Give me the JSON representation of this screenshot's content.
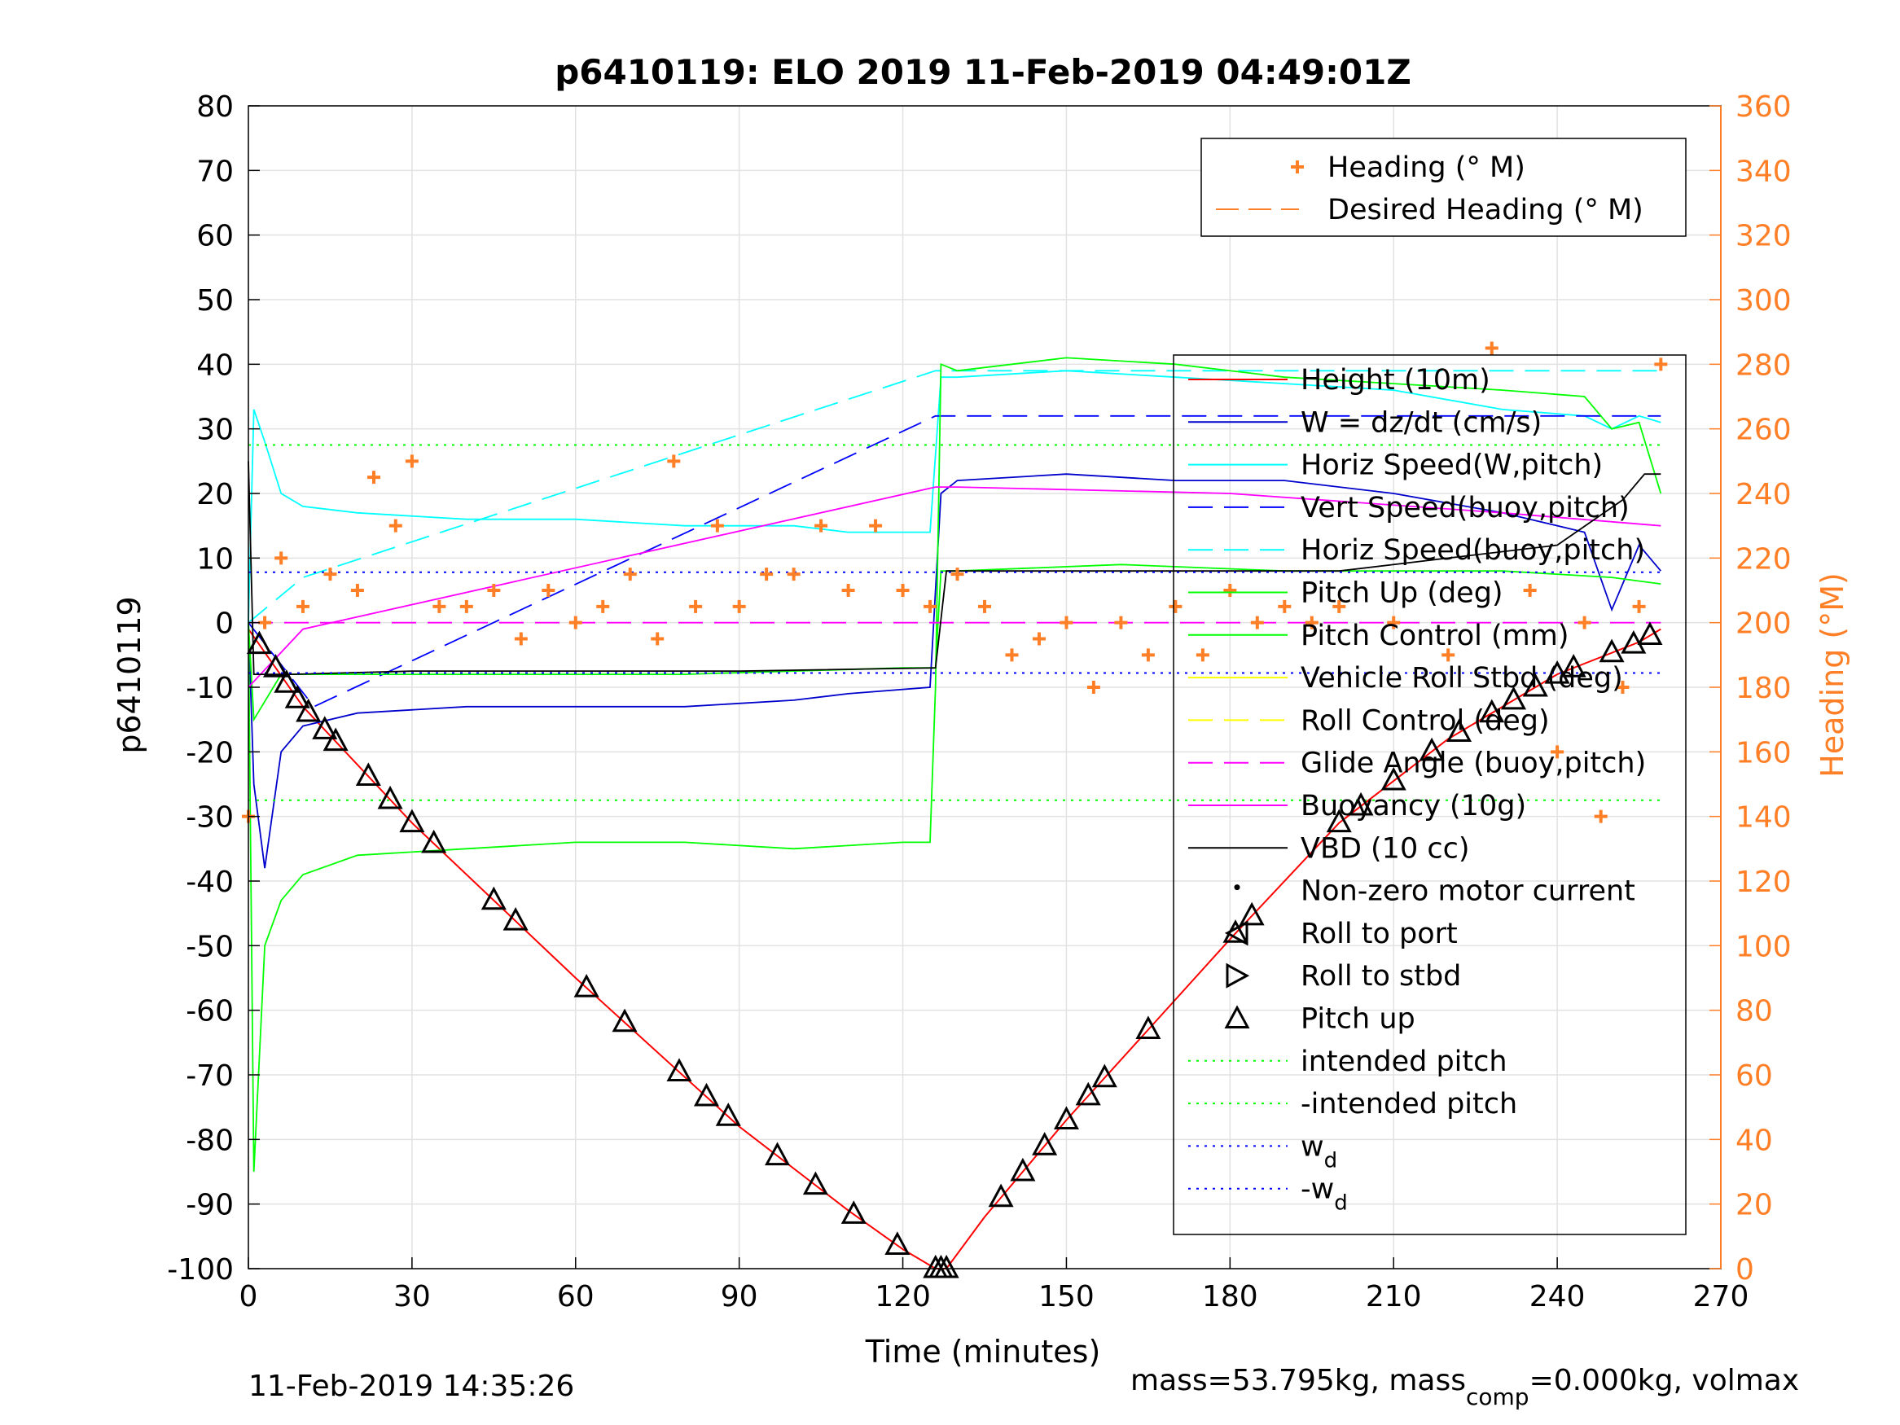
{
  "title": "p6410119: ELO 2019 11-Feb-2019 04:49:01Z",
  "footer_left": "11-Feb-2019 14:35:26",
  "footer_right": {
    "part1": "mass=53.795kg, mass",
    "sub": "comp",
    "part2": "=0.000kg, volmax"
  },
  "colors": {
    "heading": "#ff7f27",
    "height": "#ff0000",
    "w": "#0000cc",
    "horiz_speed": "#00ffff",
    "vert_speed": "#0000ff",
    "pitch": "#00ff00",
    "roll": "#ffff00",
    "glide": "#ff00ff",
    "vbd": "#000000",
    "intended_pitch": "#00ff00",
    "wd": "#0000ff"
  },
  "chart_data": {
    "type": "line",
    "xlabel": "Time (minutes)",
    "ylabel": "p6410119",
    "y2label": "Heading (°M)",
    "xlim": [
      0,
      270
    ],
    "ylim": [
      -100,
      80
    ],
    "y2lim": [
      0,
      360
    ],
    "xticks": [
      0,
      30,
      60,
      90,
      120,
      150,
      180,
      210,
      240,
      270
    ],
    "yticks": [
      80,
      70,
      60,
      50,
      40,
      30,
      20,
      10,
      0,
      -10,
      -20,
      -30,
      -40,
      -50,
      -60,
      -70,
      -80,
      -90,
      -100
    ],
    "y2ticks": [
      360,
      340,
      320,
      300,
      280,
      260,
      240,
      220,
      200,
      180,
      160,
      140,
      120,
      100,
      80,
      60,
      40,
      20,
      0
    ],
    "grid": true,
    "legend_top": {
      "placement": "top-right",
      "entries": [
        "Heading (° M)",
        "Desired Heading (° M)"
      ]
    },
    "legend_main": {
      "placement": "right",
      "entries": [
        {
          "label": "Height (10m)"
        },
        {
          "label": "W = dz/dt (cm/s)"
        },
        {
          "label": "Horiz Speed(W,pitch)"
        },
        {
          "label": "Vert Speed(buoy,pitch)"
        },
        {
          "label": "Horiz Speed(buoy,pitch)"
        },
        {
          "label": "Pitch Up (deg)"
        },
        {
          "label": "Pitch Control (mm)"
        },
        {
          "label": "Vehicle Roll Stbd (deg)"
        },
        {
          "label": "Roll Control (deg)"
        },
        {
          "label": "Glide Angle (buoy,pitch)"
        },
        {
          "label": "Buoyancy (10g)"
        },
        {
          "label": "VBD (10 cc)"
        },
        {
          "label": "Non-zero motor current"
        },
        {
          "label": "Roll to port"
        },
        {
          "label": "Roll to stbd"
        },
        {
          "label": "Pitch up"
        },
        {
          "label": "intended pitch"
        },
        {
          "label": "-intended pitch"
        },
        {
          "label": "w",
          "sub": "d"
        },
        {
          "label": "-w",
          "sub": "d"
        }
      ]
    },
    "series": [
      {
        "name": "Height (10m)",
        "x": [
          0,
          10,
          30,
          60,
          90,
          110,
          120,
          126,
          128,
          135,
          150,
          165,
          180,
          200,
          220,
          240,
          255,
          259
        ],
        "y": [
          -1,
          -13,
          -31,
          -55,
          -78,
          -91,
          -97,
          -100,
          -100,
          -92,
          -77,
          -63,
          -49,
          -31,
          -18,
          -8,
          -3,
          -1
        ]
      },
      {
        "name": "W = dz/dt (cm/s)",
        "x": [
          0,
          1,
          3,
          6,
          10,
          20,
          40,
          60,
          80,
          100,
          110,
          125,
          127,
          130,
          150,
          170,
          190,
          210,
          230,
          245,
          250,
          255,
          259
        ],
        "y": [
          0,
          -25,
          -38,
          -20,
          -16,
          -14,
          -13,
          -13,
          -13,
          -12,
          -11,
          -10,
          20,
          22,
          23,
          22,
          22,
          20,
          17,
          14,
          2,
          12,
          8
        ]
      },
      {
        "name": "Horiz Speed(W,pitch)",
        "x": [
          0,
          1,
          3,
          6,
          10,
          20,
          40,
          60,
          80,
          100,
          110,
          125,
          127,
          130,
          150,
          170,
          190,
          210,
          230,
          245,
          250,
          255,
          259
        ],
        "y": [
          0,
          33,
          28,
          20,
          18,
          17,
          16,
          16,
          15,
          15,
          14,
          14,
          38,
          38,
          39,
          38,
          37,
          36,
          33,
          32,
          30,
          32,
          31
        ]
      },
      {
        "name": "Vert Speed(buoy,pitch)",
        "x": [
          0,
          12,
          126,
          130,
          259
        ],
        "y": [
          0,
          -13,
          32,
          32,
          32
        ]
      },
      {
        "name": "Horiz Speed(buoy,pitch)",
        "x": [
          0,
          10,
          126,
          130,
          259
        ],
        "y": [
          0,
          7,
          39,
          39,
          39
        ]
      },
      {
        "name": "Pitch Control (mm)",
        "x": [
          0,
          1,
          3,
          6,
          10,
          20,
          40,
          60,
          80,
          100,
          120,
          125,
          126,
          127,
          130,
          150,
          170,
          190,
          210,
          230,
          245,
          250,
          255,
          259
        ],
        "y": [
          0,
          -85,
          -50,
          -43,
          -39,
          -36,
          -35,
          -34,
          -34,
          -35,
          -34,
          -34,
          -10,
          40,
          39,
          41,
          40,
          38,
          37,
          36,
          35,
          30,
          31,
          20
        ]
      },
      {
        "name": "Pitch Up (deg)",
        "x": [
          0,
          1,
          6,
          12,
          40,
          80,
          120,
          126,
          127,
          130,
          160,
          190,
          230,
          250,
          259
        ],
        "y": [
          0,
          -15,
          -8,
          -8,
          -8,
          -8,
          -7,
          -7,
          8,
          8,
          9,
          8,
          8,
          7,
          6
        ]
      },
      {
        "name": "Glide Angle (buoy,pitch)",
        "x": [
          0,
          10,
          120,
          126,
          259
        ],
        "y": [
          0,
          0,
          0,
          0,
          0
        ]
      },
      {
        "name": "Buoyancy (10g)",
        "x": [
          0,
          10,
          126,
          130,
          180,
          230,
          259
        ],
        "y": [
          -10,
          -1,
          21,
          21,
          20,
          17,
          15
        ]
      },
      {
        "name": "VBD (10 cc)",
        "x": [
          0,
          1,
          2,
          8,
          30,
          60,
          90,
          126,
          128,
          150,
          200,
          240,
          252,
          256,
          259
        ],
        "y": [
          25,
          -8,
          -8,
          -8,
          -7.5,
          -7.5,
          -7.5,
          -7,
          8,
          8,
          8,
          12,
          19,
          23,
          23
        ]
      },
      {
        "name": "intended pitch",
        "x": [
          0,
          259
        ],
        "y": [
          27.5,
          27.5
        ]
      },
      {
        "name": "-intended pitch",
        "x": [
          0,
          259
        ],
        "y": [
          -27.5,
          -27.5
        ]
      },
      {
        "name": "w",
        "x": [
          0,
          259
        ],
        "y": [
          7.8,
          7.8
        ]
      },
      {
        "name": "-w",
        "x": [
          0,
          259
        ],
        "y": [
          -7.8,
          -7.8
        ]
      }
    ],
    "heading": {
      "name": "Heading (° M)",
      "x": [
        0,
        3,
        6,
        10,
        15,
        20,
        23,
        27,
        30,
        35,
        40,
        45,
        50,
        55,
        60,
        65,
        70,
        75,
        78,
        82,
        86,
        90,
        95,
        100,
        105,
        110,
        115,
        120,
        125,
        130,
        135,
        140,
        145,
        150,
        155,
        160,
        165,
        170,
        175,
        180,
        185,
        190,
        195,
        200,
        210,
        220,
        228,
        235,
        240,
        245,
        248,
        252,
        255,
        259
      ],
      "y": [
        140,
        200,
        220,
        205,
        215,
        210,
        245,
        230,
        250,
        205,
        205,
        210,
        195,
        210,
        200,
        205,
        215,
        195,
        250,
        205,
        230,
        205,
        215,
        215,
        230,
        210,
        230,
        210,
        205,
        215,
        205,
        190,
        195,
        200,
        180,
        200,
        190,
        205,
        190,
        210,
        200,
        205,
        200,
        205,
        200,
        190,
        285,
        210,
        160,
        200,
        140,
        180,
        205,
        280
      ]
    },
    "pitch_up_markers_x": [
      2,
      5,
      7,
      9,
      11,
      14,
      16,
      22,
      26,
      30,
      34,
      45,
      49,
      62,
      69,
      79,
      84,
      88,
      97,
      104,
      111,
      119,
      126,
      127,
      128,
      138,
      142,
      146,
      150,
      154,
      157,
      165,
      181,
      184,
      200,
      204,
      210,
      217,
      222,
      228,
      232,
      236,
      240,
      243,
      250,
      254,
      257
    ]
  }
}
